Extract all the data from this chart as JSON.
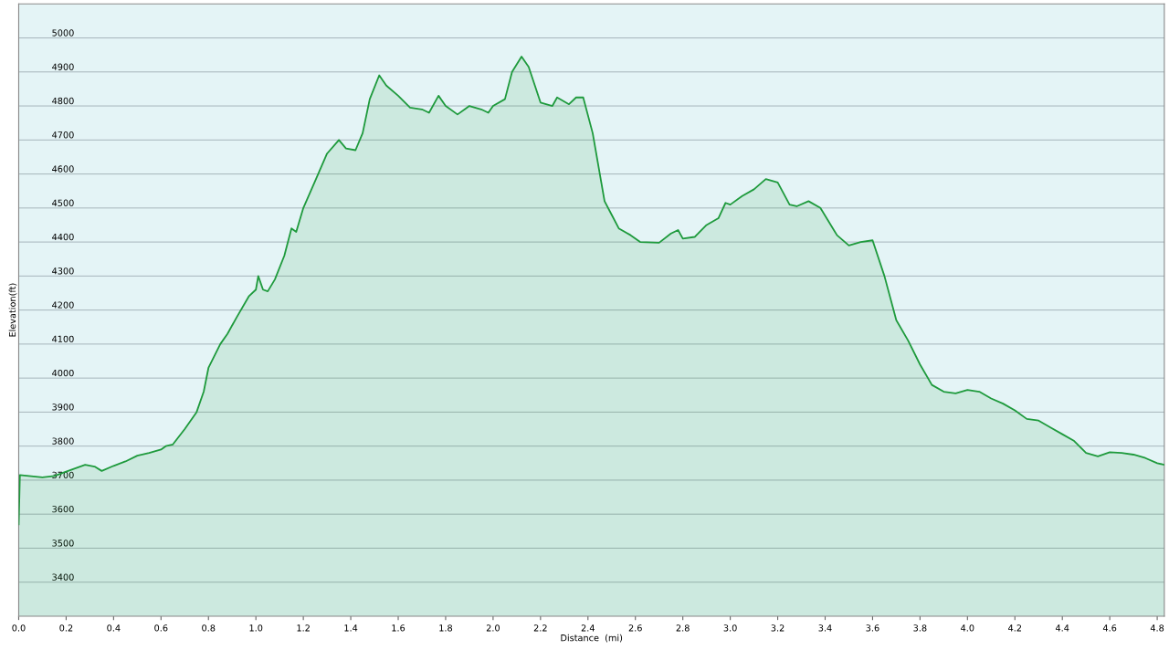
{
  "chart_data": {
    "type": "area",
    "xlabel": "Distance  (mi)",
    "ylabel": "Elevation(ft)",
    "x": [
      0,
      0.005,
      0.1,
      0.15,
      0.2,
      0.28,
      0.32,
      0.35,
      0.4,
      0.45,
      0.5,
      0.55,
      0.6,
      0.62,
      0.65,
      0.7,
      0.75,
      0.78,
      0.8,
      0.85,
      0.88,
      0.92,
      0.97,
      1.0,
      1.01,
      1.03,
      1.05,
      1.08,
      1.12,
      1.15,
      1.17,
      1.2,
      1.25,
      1.3,
      1.35,
      1.38,
      1.42,
      1.45,
      1.48,
      1.52,
      1.55,
      1.6,
      1.65,
      1.7,
      1.73,
      1.77,
      1.8,
      1.85,
      1.9,
      1.95,
      1.98,
      2.0,
      2.05,
      2.08,
      2.12,
      2.15,
      2.2,
      2.25,
      2.27,
      2.32,
      2.35,
      2.38,
      2.42,
      2.47,
      2.5,
      2.53,
      2.58,
      2.62,
      2.7,
      2.75,
      2.78,
      2.8,
      2.85,
      2.9,
      2.95,
      2.98,
      3.0,
      3.05,
      3.1,
      3.15,
      3.2,
      3.25,
      3.28,
      3.33,
      3.38,
      3.45,
      3.5,
      3.55,
      3.6,
      3.65,
      3.7,
      3.75,
      3.8,
      3.85,
      3.9,
      3.95,
      4.0,
      4.05,
      4.1,
      4.15,
      4.2,
      4.25,
      4.3,
      4.35,
      4.4,
      4.45,
      4.5,
      4.55,
      4.6,
      4.65,
      4.7,
      4.75,
      4.8,
      4.83
    ],
    "series": [
      {
        "color": "#1e9a3c",
        "values": [
          3570,
          3715,
          3708,
          3712,
          3725,
          3745,
          3740,
          3727,
          3742,
          3755,
          3772,
          3780,
          3790,
          3800,
          3805,
          3850,
          3900,
          3960,
          4030,
          4100,
          4130,
          4180,
          4240,
          4260,
          4300,
          4260,
          4255,
          4290,
          4360,
          4440,
          4430,
          4500,
          4580,
          4660,
          4700,
          4675,
          4670,
          4720,
          4820,
          4890,
          4860,
          4830,
          4795,
          4790,
          4780,
          4830,
          4800,
          4775,
          4800,
          4790,
          4780,
          4800,
          4820,
          4900,
          4945,
          4915,
          4810,
          4800,
          4825,
          4805,
          4825,
          4825,
          4720,
          4520,
          4480,
          4440,
          4420,
          4400,
          4398,
          4425,
          4435,
          4410,
          4415,
          4450,
          4470,
          4515,
          4510,
          4535,
          4555,
          4585,
          4575,
          4510,
          4505,
          4520,
          4500,
          4420,
          4390,
          4400,
          4405,
          4300,
          4170,
          4110,
          4040,
          3980,
          3960,
          3955,
          3965,
          3960,
          3940,
          3925,
          3905,
          3880,
          3875,
          3855,
          3835,
          3815,
          3780,
          3770,
          3782,
          3780,
          3775,
          3765,
          3750,
          3745
        ]
      }
    ],
    "xlim": [
      0,
      4.83
    ],
    "ylim": [
      3300,
      5100
    ],
    "xticks": [
      {
        "value": 0,
        "label": "0.0"
      },
      {
        "value": 0.2,
        "label": "0.2"
      },
      {
        "value": 0.4,
        "label": "0.4"
      },
      {
        "value": 0.6,
        "label": "0.6"
      },
      {
        "value": 0.8,
        "label": "0.8"
      },
      {
        "value": 1,
        "label": "1.0"
      },
      {
        "value": 1.2,
        "label": "1.2"
      },
      {
        "value": 1.4,
        "label": "1.4"
      },
      {
        "value": 1.6,
        "label": "1.6"
      },
      {
        "value": 1.8,
        "label": "1.8"
      },
      {
        "value": 2,
        "label": "2.0"
      },
      {
        "value": 2.2,
        "label": "2.2"
      },
      {
        "value": 2.4,
        "label": "2.4"
      },
      {
        "value": 2.6,
        "label": "2.6"
      },
      {
        "value": 2.8,
        "label": "2.8"
      },
      {
        "value": 3,
        "label": "3.0"
      },
      {
        "value": 3.2,
        "label": "3.2"
      },
      {
        "value": 3.4,
        "label": "3.4"
      },
      {
        "value": 3.6,
        "label": "3.6"
      },
      {
        "value": 3.8,
        "label": "3.8"
      },
      {
        "value": 4,
        "label": "4.0"
      },
      {
        "value": 4.2,
        "label": "4.2"
      },
      {
        "value": 4.4,
        "label": "4.4"
      },
      {
        "value": 4.6,
        "label": "4.6"
      },
      {
        "value": 4.8,
        "label": "4.8"
      }
    ],
    "yticks": [
      3400,
      3500,
      3600,
      3700,
      3800,
      3900,
      4000,
      4100,
      4200,
      4300,
      4400,
      4500,
      4600,
      4700,
      4800,
      4900,
      5000
    ],
    "grid": "y",
    "legend": false
  }
}
